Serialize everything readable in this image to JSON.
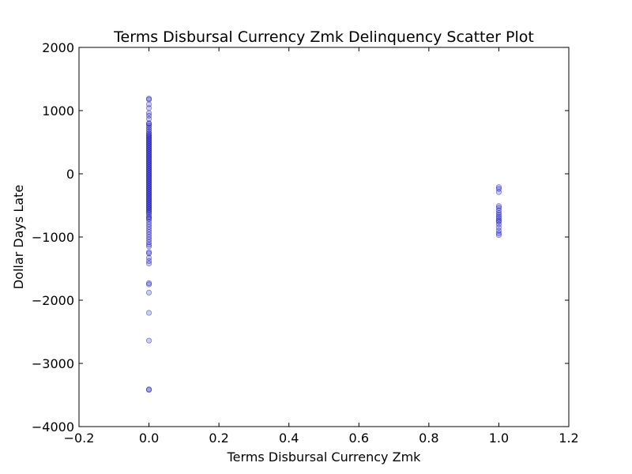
{
  "chart_data": {
    "type": "scatter",
    "title": "Terms Disbursal Currency Zmk Delinquency Scatter Plot",
    "xlabel": "Terms Disbursal Currency Zmk",
    "ylabel": "Dollar Days Late",
    "xlim": [
      -0.2,
      1.2
    ],
    "ylim": [
      -4000,
      2000
    ],
    "xticks": [
      -0.2,
      0.0,
      0.2,
      0.4,
      0.6,
      0.8,
      1.0,
      1.2
    ],
    "xtick_labels": [
      "−0.2",
      "0.0",
      "0.2",
      "0.4",
      "0.6",
      "0.8",
      "1.0",
      "1.2"
    ],
    "yticks": [
      2000,
      1000,
      0,
      -1000,
      -2000,
      -3000,
      -4000
    ],
    "ytick_labels": [
      "2000",
      "1000",
      "0",
      "−1000",
      "−2000",
      "−3000",
      "−4000"
    ],
    "grid": false,
    "marker_color": "#0000ff",
    "marker_alpha": 0.2,
    "series": [
      {
        "points": [
          [
            0,
            1190
          ],
          [
            0,
            1175
          ],
          [
            0,
            1100
          ],
          [
            0,
            1040
          ],
          [
            0,
            960
          ],
          [
            0,
            920
          ],
          [
            0,
            870
          ],
          [
            0,
            800
          ],
          [
            0,
            790
          ],
          [
            0,
            760
          ],
          [
            0,
            730
          ],
          [
            0,
            700
          ],
          [
            0,
            670
          ],
          [
            0,
            640
          ],
          [
            0,
            620
          ],
          [
            0,
            600
          ],
          [
            0,
            580
          ],
          [
            0,
            560
          ],
          [
            0,
            540
          ],
          [
            0,
            520
          ],
          [
            0,
            500
          ],
          [
            0,
            480
          ],
          [
            0,
            460
          ],
          [
            0,
            440
          ],
          [
            0,
            420
          ],
          [
            0,
            400
          ],
          [
            0,
            380
          ],
          [
            0,
            360
          ],
          [
            0,
            340
          ],
          [
            0,
            320
          ],
          [
            0,
            300
          ],
          [
            0,
            280
          ],
          [
            0,
            260
          ],
          [
            0,
            240
          ],
          [
            0,
            220
          ],
          [
            0,
            200
          ],
          [
            0,
            180
          ],
          [
            0,
            160
          ],
          [
            0,
            140
          ],
          [
            0,
            120
          ],
          [
            0,
            100
          ],
          [
            0,
            80
          ],
          [
            0,
            60
          ],
          [
            0,
            40
          ],
          [
            0,
            20
          ],
          [
            0,
            0
          ],
          [
            0,
            -20
          ],
          [
            0,
            -40
          ],
          [
            0,
            -60
          ],
          [
            0,
            -80
          ],
          [
            0,
            -100
          ],
          [
            0,
            -120
          ],
          [
            0,
            -140
          ],
          [
            0,
            -160
          ],
          [
            0,
            -180
          ],
          [
            0,
            -200
          ],
          [
            0,
            -220
          ],
          [
            0,
            -240
          ],
          [
            0,
            -260
          ],
          [
            0,
            -280
          ],
          [
            0,
            -300
          ],
          [
            0,
            -320
          ],
          [
            0,
            -340
          ],
          [
            0,
            -360
          ],
          [
            0,
            -380
          ],
          [
            0,
            -400
          ],
          [
            0,
            -420
          ],
          [
            0,
            -440
          ],
          [
            0,
            -460
          ],
          [
            0,
            -480
          ],
          [
            0,
            -500
          ],
          [
            0,
            -520
          ],
          [
            0,
            -540
          ],
          [
            0,
            -560
          ],
          [
            0,
            -580
          ],
          [
            0,
            -600
          ],
          [
            0,
            -620
          ],
          [
            0,
            -650
          ],
          [
            0,
            -680
          ],
          [
            0,
            -700
          ],
          [
            0,
            -720
          ],
          [
            0,
            -760
          ],
          [
            0,
            -800
          ],
          [
            0,
            -840
          ],
          [
            0,
            -880
          ],
          [
            0,
            -920
          ],
          [
            0,
            -960
          ],
          [
            0,
            -1000
          ],
          [
            0,
            -1040
          ],
          [
            0,
            -1080
          ],
          [
            0,
            -1120
          ],
          [
            0,
            -1150
          ],
          [
            0,
            -1240
          ],
          [
            0,
            -1260
          ],
          [
            0,
            -1330
          ],
          [
            0,
            -1380
          ],
          [
            0,
            -1420
          ],
          [
            0,
            -1730
          ],
          [
            0,
            -1750
          ],
          [
            0,
            -1880
          ],
          [
            0,
            -2200
          ],
          [
            0,
            -2640
          ],
          [
            0,
            -3410
          ],
          [
            0,
            -3420
          ],
          [
            1,
            -210
          ],
          [
            1,
            -240
          ],
          [
            1,
            -290
          ],
          [
            1,
            -510
          ],
          [
            1,
            -540
          ],
          [
            1,
            -580
          ],
          [
            1,
            -620
          ],
          [
            1,
            -650
          ],
          [
            1,
            -680
          ],
          [
            1,
            -710
          ],
          [
            1,
            -740
          ],
          [
            1,
            -760
          ],
          [
            1,
            -800
          ],
          [
            1,
            -850
          ],
          [
            1,
            -900
          ],
          [
            1,
            -940
          ],
          [
            1,
            -970
          ]
        ]
      }
    ]
  }
}
